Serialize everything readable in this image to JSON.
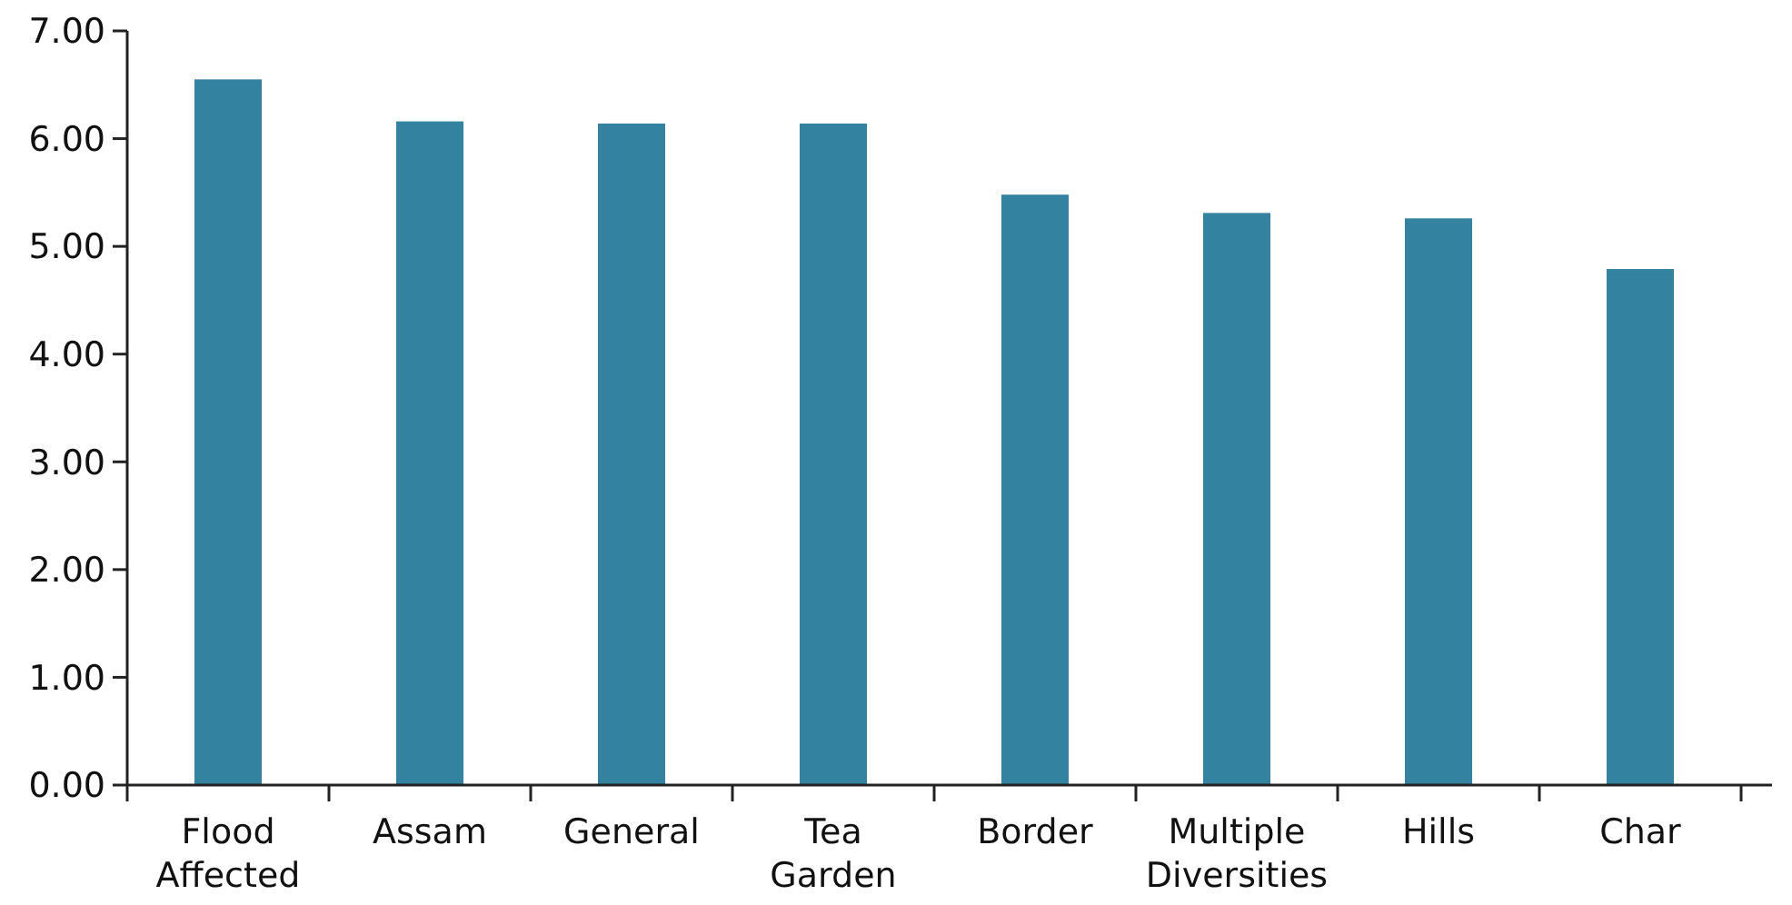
{
  "chart_data": {
    "type": "bar",
    "categories": [
      "Flood Affected",
      "Assam",
      "General",
      "Tea Garden",
      "Border",
      "Multiple Diversities",
      "Hills",
      "Char"
    ],
    "values": [
      6.55,
      6.16,
      6.14,
      6.14,
      5.48,
      5.31,
      5.26,
      4.79
    ],
    "color": "#33829f",
    "ylim": [
      0,
      7
    ],
    "yticks": [
      {
        "value": 0,
        "label": "0.00"
      },
      {
        "value": 1,
        "label": "1.00"
      },
      {
        "value": 2,
        "label": "2.00"
      },
      {
        "value": 3,
        "label": "3.00"
      },
      {
        "value": 4,
        "label": "4.00"
      },
      {
        "value": 5,
        "label": "5.00"
      },
      {
        "value": 6,
        "label": "6.00"
      },
      {
        "value": 7,
        "label": "7.00"
      }
    ],
    "grid": false
  }
}
